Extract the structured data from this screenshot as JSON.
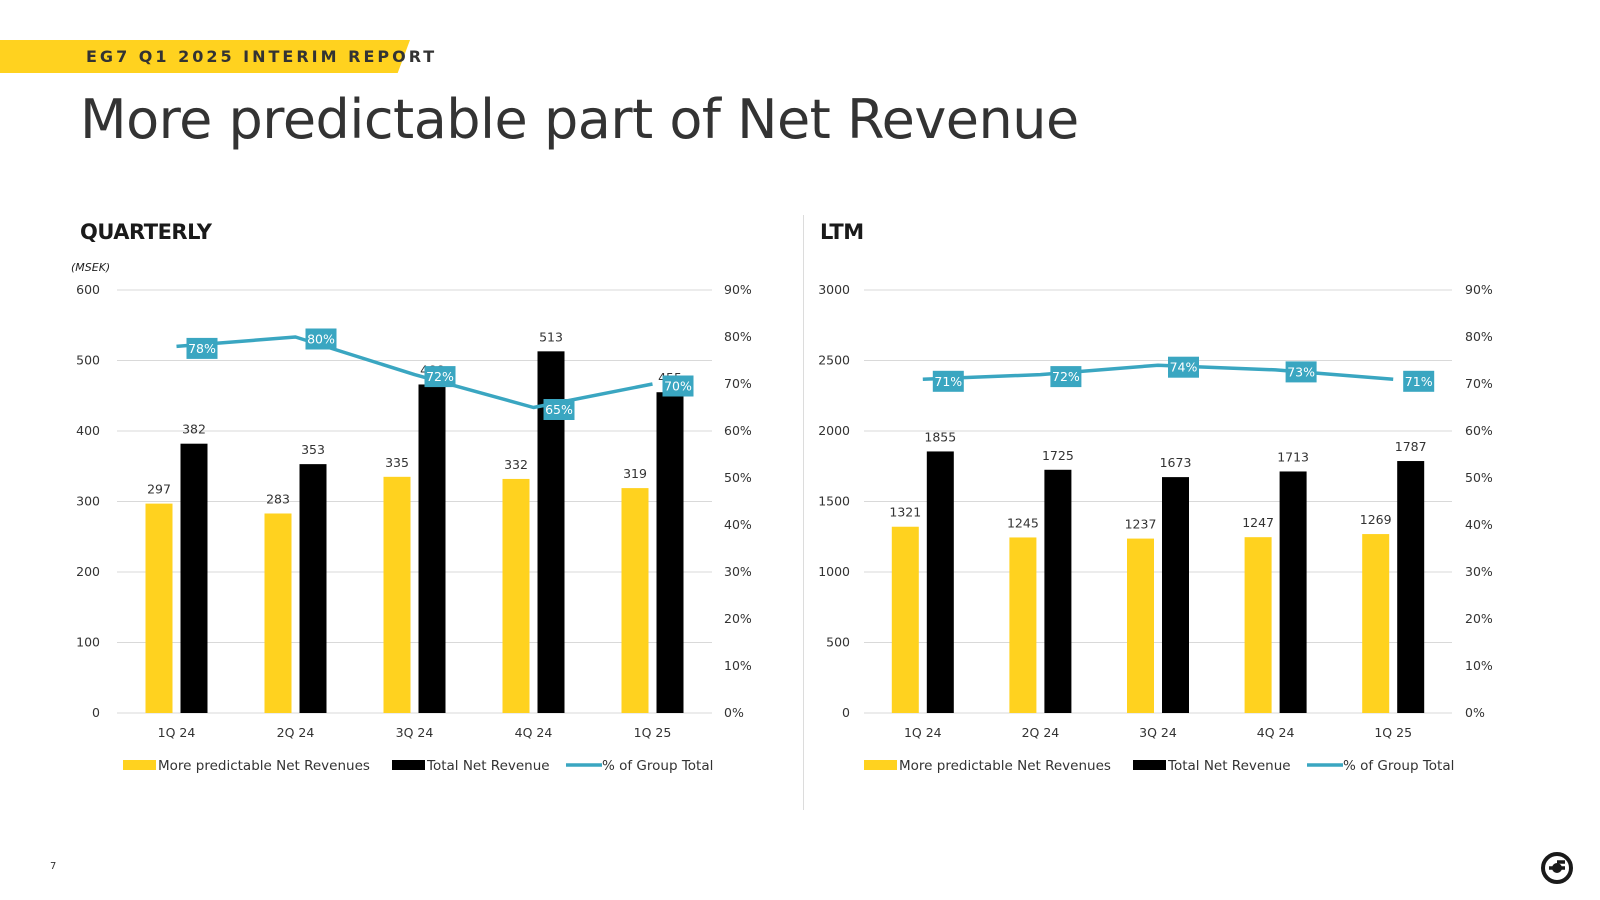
{
  "header": {
    "banner_text": "EG7 Q1 2025 INTERIM REPORT",
    "title": "More predictable part of Net Revenue"
  },
  "footer": {
    "page_number": "7"
  },
  "colors": {
    "yellow": "#FFD21F",
    "black": "#000000",
    "teal": "#3AA6C1",
    "grid": "#d9d9d9"
  },
  "chart_data": [
    {
      "title": "QUARTERLY",
      "unit": "(MSEK)",
      "type": "bar+line",
      "categories": [
        "1Q 24",
        "2Q 24",
        "3Q 24",
        "4Q 24",
        "1Q 25"
      ],
      "series": [
        {
          "name": "More predictable  Net Revenues",
          "type": "bar",
          "axis": "left",
          "values": [
            297,
            283,
            335,
            332,
            319
          ]
        },
        {
          "name": "Total Net Revenue",
          "type": "bar",
          "axis": "left",
          "values": [
            382,
            353,
            466,
            513,
            455
          ]
        },
        {
          "name": "% of Group Total",
          "type": "line",
          "axis": "right",
          "values": [
            78,
            80,
            72,
            65,
            70
          ],
          "labels": [
            "78%",
            "80%",
            "72%",
            "65%",
            "70%"
          ]
        }
      ],
      "y_left": {
        "min": 0,
        "max": 600,
        "ticks": [
          "0",
          "100",
          "200",
          "300",
          "400",
          "500",
          "600"
        ]
      },
      "y_right": {
        "min": 0,
        "max": 90,
        "ticks": [
          "0%",
          "10%",
          "20%",
          "30%",
          "40%",
          "50%",
          "60%",
          "70%",
          "80%",
          "90%"
        ]
      },
      "legend_position": "bottom"
    },
    {
      "title": "LTM",
      "type": "bar+line",
      "categories": [
        "1Q 24",
        "2Q 24",
        "3Q 24",
        "4Q 24",
        "1Q 25"
      ],
      "series": [
        {
          "name": "More predictable  Net Revenues",
          "type": "bar",
          "axis": "left",
          "values": [
            1321,
            1245,
            1237,
            1247,
            1269
          ]
        },
        {
          "name": "Total Net Revenue",
          "type": "bar",
          "axis": "left",
          "values": [
            1855,
            1725,
            1673,
            1713,
            1787
          ]
        },
        {
          "name": "% of Group Total",
          "type": "line",
          "axis": "right",
          "values": [
            71,
            72,
            74,
            73,
            71
          ],
          "labels": [
            "71%",
            "72%",
            "74%",
            "73%",
            "71%"
          ]
        }
      ],
      "y_left": {
        "min": 0,
        "max": 3000,
        "ticks": [
          "0",
          "500",
          "1000",
          "1500",
          "2000",
          "2500",
          "3000"
        ]
      },
      "y_right": {
        "min": 0,
        "max": 90,
        "ticks": [
          "0%",
          "10%",
          "20%",
          "30%",
          "40%",
          "50%",
          "60%",
          "70%",
          "80%",
          "90%"
        ]
      },
      "legend_position": "bottom"
    }
  ]
}
